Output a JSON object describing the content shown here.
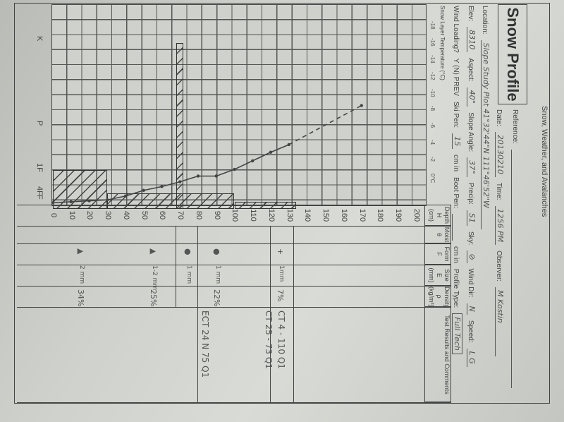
{
  "header": {
    "publisher": "Snow, Weather, and Avalanches",
    "title": "Snow Profile"
  },
  "info": {
    "reference_label": "Reference:",
    "date_label": "Date:",
    "date": "20130210",
    "time_label": "Time:",
    "time": "1256 PM",
    "observer_label": "Observer:",
    "observer": "M Kostin",
    "location_label": "Location:",
    "location": "Slope Study Plot 41°32'44\"N 111°46'52\"W",
    "elev_label": "Elev:",
    "elev": "8310",
    "aspect_label": "Aspect:",
    "aspect": "40°",
    "slope_label": "Slope Angle:",
    "slope": "37°",
    "precip_label": "Precip:",
    "precip": "S1",
    "sky_label": "Sky:",
    "sky": "⊘",
    "wind_dir_label": "Wind Dir:",
    "wind_dir": "N",
    "speed_label": "Speed:",
    "speed": "L G",
    "wind_loading_label": "Wind Loading?",
    "wind_loading_options": "Y (N) PREV",
    "ski_pen_label": "Ski Pen:",
    "ski_pen": "15",
    "ski_pen_unit": "cm in",
    "boot_pen_label": "Boot Pen:",
    "boot_pen_unit": "cm in",
    "profile_type_label": "Profile Type:",
    "profile_type": "Full Tech"
  },
  "table_headers": [
    {
      "label": "Depth",
      "sub": "H",
      "unit": "(cm)"
    },
    {
      "label": "Moist",
      "sub": "θ",
      "unit": ""
    },
    {
      "label": "Form",
      "sub": "F",
      "unit": ""
    },
    {
      "label": "Size",
      "sub": "E",
      "unit": "(mm)"
    },
    {
      "label": "Density",
      "sub": "ρ",
      "unit": "(kg/m³)"
    },
    {
      "label": "Test Results and Comments",
      "sub": "",
      "unit": ""
    }
  ],
  "temperature_axis_label": "Snow Layer Temperature (°C)",
  "temperature_ticks": [
    "-18",
    "-16",
    "-14",
    "-12",
    "-10",
    "-8",
    "-6",
    "-4",
    "-2",
    "0°C"
  ],
  "hardness_ticks": [
    "K",
    "P",
    "1F",
    "4F",
    "F"
  ],
  "depth_ticks": [
    "0",
    "10",
    "20",
    "30",
    "40",
    "50",
    "60",
    "70",
    "80",
    "90",
    "100",
    "110",
    "120",
    "130",
    "140",
    "150",
    "160",
    "170",
    "180",
    "190",
    "200"
  ],
  "layers": [
    {
      "depth": 15,
      "form": "▲",
      "size": "2 mm",
      "density": "34%"
    },
    {
      "depth": 55,
      "form": "▲",
      "size": "1-2 mm",
      "density": "25%"
    },
    {
      "depth": 74,
      "form": "●",
      "size": "1 mm",
      "density": ""
    },
    {
      "depth": 90,
      "form": "●",
      "size": "1 mm",
      "density": "22%"
    },
    {
      "depth": 125,
      "form": "+",
      "size": "1mm",
      "density": "7%"
    }
  ],
  "tests": [
    {
      "depth": 126,
      "text": "CT 4 - 110 Q1"
    },
    {
      "depth": 119,
      "text": "CT 25 - 73 Q1"
    },
    {
      "depth": 84,
      "text": "ECT 24 N 75 Q1"
    }
  ],
  "chart_data": {
    "type": "line",
    "hardness_profile": [
      {
        "from_cm": 0,
        "to_cm": 30,
        "hardness": "1F"
      },
      {
        "from_cm": 30,
        "to_cm": 100,
        "hardness": "4F"
      },
      {
        "from_cm": 68,
        "to_cm": 72,
        "hardness": "K"
      },
      {
        "from_cm": 100,
        "to_cm": 134,
        "hardness": "F"
      }
    ],
    "temperature_profile": {
      "depth_cm": [
        0,
        10,
        20,
        30,
        40,
        50,
        60,
        70,
        80,
        90,
        100,
        110,
        120,
        130,
        170
      ],
      "temp_c": [
        -0.2,
        -0.3,
        -0.4,
        -0.5,
        -0.9,
        -1.5,
        -1.9,
        -2.4,
        -3.0,
        -3.0,
        -3.7,
        -4.6,
        -5.5,
        -6.3,
        -10.4
      ],
      "dashed_above_cm": 130
    },
    "ylim": [
      0,
      200
    ],
    "xlim_temp": [
      -21,
      0
    ]
  }
}
